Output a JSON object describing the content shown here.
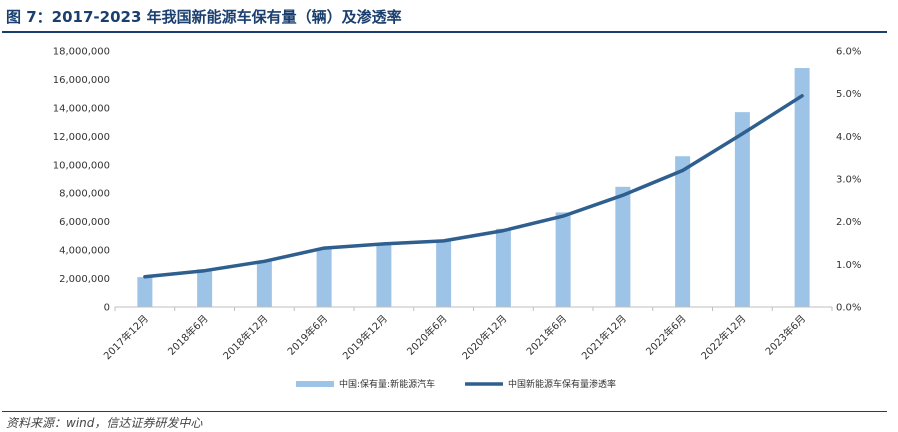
{
  "header": {
    "title": "图 7：2017-2023 年我国新能源车保有量（辆）及渗透率"
  },
  "footer": {
    "source": "资料来源：wind，信达证券研发中心"
  },
  "colors": {
    "bar": "#9dc3e6",
    "line": "#2e5f8e",
    "axis": "#bfbfbf",
    "title": "#1a3f6f"
  },
  "chart_data": {
    "type": "bar",
    "categories": [
      "2017年12月",
      "2018年6月",
      "2018年12月",
      "2019年6月",
      "2019年12月",
      "2020年6月",
      "2020年12月",
      "2021年6月",
      "2021年12月",
      "2022年6月",
      "2022年12月",
      "2023年6月"
    ],
    "series": [
      {
        "name": "中国:保有量:新能源汽车",
        "type": "bar",
        "axis": "left",
        "values": [
          2100000,
          2650000,
          3250000,
          4150000,
          4500000,
          4650000,
          5500000,
          6650000,
          8450000,
          10600000,
          13700000,
          16800000
        ]
      },
      {
        "name": "中国新能源车保有量渗透率",
        "type": "line",
        "axis": "right",
        "values": [
          0.71,
          0.85,
          1.07,
          1.38,
          1.48,
          1.55,
          1.79,
          2.13,
          2.62,
          3.2,
          4.06,
          4.95
        ]
      }
    ],
    "ylim": [
      0,
      18000000
    ],
    "yticks": [
      "0",
      "2,000,000",
      "4,000,000",
      "6,000,000",
      "8,000,000",
      "10,000,000",
      "12,000,000",
      "14,000,000",
      "16,000,000",
      "18,000,000"
    ],
    "y2lim": [
      0,
      6.0
    ],
    "y2ticks": [
      "0.0%",
      "1.0%",
      "2.0%",
      "3.0%",
      "4.0%",
      "5.0%",
      "6.0%"
    ],
    "legend_position": "bottom",
    "grid": false
  }
}
